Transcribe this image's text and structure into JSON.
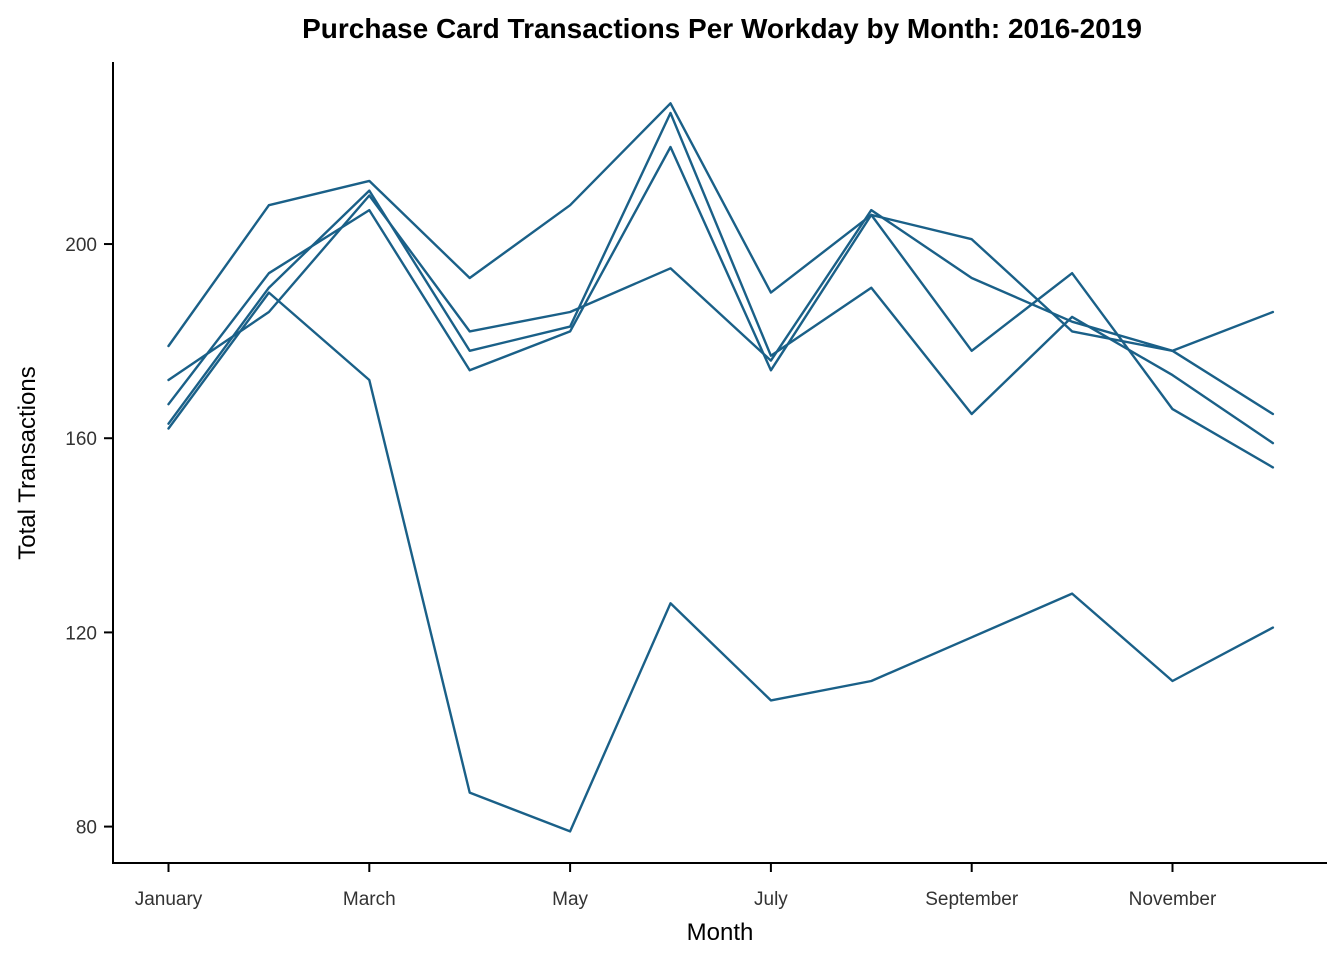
{
  "chart_data": {
    "type": "line",
    "title": "Purchase Card Transactions Per Workday by Month: 2016-2019",
    "xlabel": "Month",
    "ylabel": "Total Transactions",
    "x": [
      "January",
      "February",
      "March",
      "April",
      "May",
      "June",
      "July",
      "August",
      "September",
      "October",
      "November",
      "December"
    ],
    "x_tick_labels": [
      "January",
      "March",
      "May",
      "July",
      "September",
      "November"
    ],
    "y_ticks": [
      80,
      120,
      160,
      200
    ],
    "ylim": [
      72.5,
      237.5
    ],
    "grid": false,
    "legend": false,
    "line_color": "#1a6088",
    "series": [
      {
        "values": [
          179,
          208,
          213,
          193,
          208,
          229,
          190,
          206,
          201,
          182,
          178,
          186
        ]
      },
      {
        "values": [
          172,
          186,
          210,
          182,
          186,
          195,
          176,
          207,
          193,
          184,
          178,
          165
        ]
      },
      {
        "values": [
          167,
          194,
          207,
          174,
          182,
          220,
          174,
          206,
          178,
          194,
          166,
          154
        ]
      },
      {
        "values": [
          163,
          191,
          211,
          178,
          183,
          227,
          177,
          191,
          165,
          185,
          173,
          159
        ]
      },
      {
        "values": [
          162,
          190,
          172,
          87,
          79,
          126,
          106,
          110,
          119,
          128,
          110,
          121
        ]
      }
    ]
  }
}
